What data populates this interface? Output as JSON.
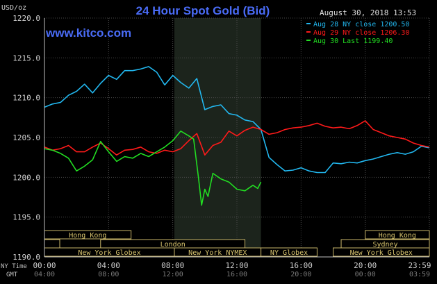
{
  "chart_data": {
    "type": "line",
    "title": "24 Hour Spot Gold (Bid)",
    "subtitle": "www.kitco.com",
    "timestamp": "August 30, 2018 13:53",
    "ylabel": "USD/oz",
    "ylim": [
      1190.0,
      1220.0
    ],
    "y_ticks": [
      "1220.0",
      "1215.0",
      "1210.0",
      "1205.0",
      "1200.0",
      "1195.0",
      "1190.0"
    ],
    "x_ticks_ny": [
      "00:00",
      "04:00",
      "08:00",
      "12:00",
      "16:00",
      "20:00",
      "23:59"
    ],
    "x_ticks_gmt": [
      "04:00",
      "08:00",
      "12:00",
      "16:00",
      "20:00",
      "00:00",
      "03:59"
    ],
    "x_row_labels": {
      "ny": "NY Time",
      "gmt": "GMT"
    },
    "grid": true,
    "legend_position": "top-right",
    "colors": {
      "aug28": "#22b8f0",
      "aug29": "#ff1a1a",
      "aug30": "#22dd22",
      "axis": "#c0c0c0",
      "title": "#4a6cf7"
    },
    "highlight_band_hours": [
      8.1,
      13.5
    ],
    "sessions": [
      {
        "name": "Hong Kong",
        "start": 0,
        "end": 5.4,
        "row": 0
      },
      {
        "name": "London",
        "start": 3.5,
        "end": 12.5,
        "row": 1
      },
      {
        "name": "New York Globex",
        "start": 0,
        "end": 8.1,
        "row": 2
      },
      {
        "name": "New York NYMEX",
        "start": 8.1,
        "end": 13.5,
        "row": 2
      },
      {
        "name": "NY Globex",
        "start": 13.5,
        "end": 17.0,
        "row": 2
      },
      {
        "name": "Hong Kong",
        "start": 20.0,
        "end": 24.0,
        "row": 0
      },
      {
        "name": "Sydney",
        "start": 18.5,
        "end": 24.0,
        "row": 1
      },
      {
        "name": "New York Globex",
        "start": 18.0,
        "end": 24.0,
        "row": 2
      }
    ],
    "session_start_marker": {
      "hour": 0,
      "row": 1
    },
    "series": [
      {
        "name": "Aug 28 NY close 1200.50",
        "x": [
          0,
          0.5,
          1,
          1.5,
          2,
          2.5,
          3,
          3.5,
          4,
          4.5,
          5,
          5.5,
          6,
          6.5,
          7,
          7.5,
          8,
          8.5,
          9,
          9.5,
          10,
          10.5,
          11,
          11.5,
          12,
          12.5,
          13,
          13.5,
          14,
          14.5,
          15,
          15.5,
          16,
          16.5,
          17,
          17.5,
          18,
          18.5,
          19,
          19.5,
          20,
          20.5,
          21,
          21.5,
          22,
          22.5,
          23,
          23.5,
          23.99
        ],
        "y": [
          1208.8,
          1209.2,
          1209.4,
          1210.3,
          1210.8,
          1211.7,
          1210.6,
          1211.8,
          1212.8,
          1212.3,
          1213.4,
          1213.4,
          1213.6,
          1213.9,
          1213.2,
          1211.6,
          1212.8,
          1211.9,
          1211.2,
          1212.4,
          1208.5,
          1208.9,
          1209.1,
          1208.0,
          1207.8,
          1207.2,
          1207.0,
          1206.0,
          1202.5,
          1201.6,
          1200.8,
          1200.9,
          1201.2,
          1200.8,
          1200.6,
          1200.6,
          1201.8,
          1201.7,
          1201.9,
          1201.8,
          1202.1,
          1202.3,
          1202.6,
          1202.9,
          1203.1,
          1202.9,
          1203.2,
          1203.9,
          1203.7
        ]
      },
      {
        "name": "Aug 29 NY close 1206.30",
        "x": [
          0,
          0.5,
          1,
          1.5,
          2,
          2.5,
          3,
          3.5,
          4,
          4.5,
          5,
          5.5,
          6,
          6.5,
          7,
          7.5,
          8,
          8.5,
          9,
          9.5,
          10,
          10.5,
          11,
          11.5,
          12,
          12.5,
          13,
          13.5,
          14,
          14.5,
          15,
          15.5,
          16,
          16.5,
          17,
          17.5,
          18,
          18.5,
          19,
          19.5,
          20,
          20.5,
          21,
          21.5,
          22,
          22.5,
          23,
          23.5,
          23.99
        ],
        "y": [
          1203.8,
          1203.4,
          1203.6,
          1204.0,
          1203.2,
          1203.2,
          1203.8,
          1204.3,
          1203.6,
          1202.8,
          1203.4,
          1203.5,
          1203.8,
          1203.2,
          1203.0,
          1203.4,
          1203.2,
          1203.6,
          1204.6,
          1205.5,
          1202.8,
          1204.0,
          1204.4,
          1205.8,
          1205.2,
          1205.9,
          1206.3,
          1206.0,
          1205.4,
          1205.6,
          1206.0,
          1206.2,
          1206.3,
          1206.5,
          1206.8,
          1206.4,
          1206.2,
          1206.3,
          1206.1,
          1206.5,
          1207.1,
          1206.0,
          1205.6,
          1205.2,
          1205.0,
          1204.8,
          1204.3,
          1204.0,
          1203.8
        ]
      },
      {
        "name": "Aug 30 Last 1199.40",
        "x": [
          0,
          0.5,
          1,
          1.5,
          2,
          2.5,
          3,
          3.5,
          4,
          4.5,
          5,
          5.5,
          6,
          6.5,
          7,
          7.5,
          8,
          8.5,
          9,
          9.3,
          9.6,
          9.8,
          10.0,
          10.2,
          10.5,
          11,
          11.5,
          12,
          12.5,
          13,
          13.3,
          13.5
        ],
        "y": [
          1203.6,
          1203.4,
          1203.0,
          1202.4,
          1200.8,
          1201.4,
          1202.2,
          1204.5,
          1203.2,
          1202.0,
          1202.6,
          1202.4,
          1203.0,
          1202.6,
          1203.2,
          1203.8,
          1204.6,
          1205.8,
          1205.2,
          1204.8,
          1200.0,
          1196.5,
          1198.5,
          1197.6,
          1200.5,
          1199.8,
          1199.4,
          1198.5,
          1198.3,
          1199.0,
          1198.6,
          1199.4
        ]
      }
    ]
  }
}
